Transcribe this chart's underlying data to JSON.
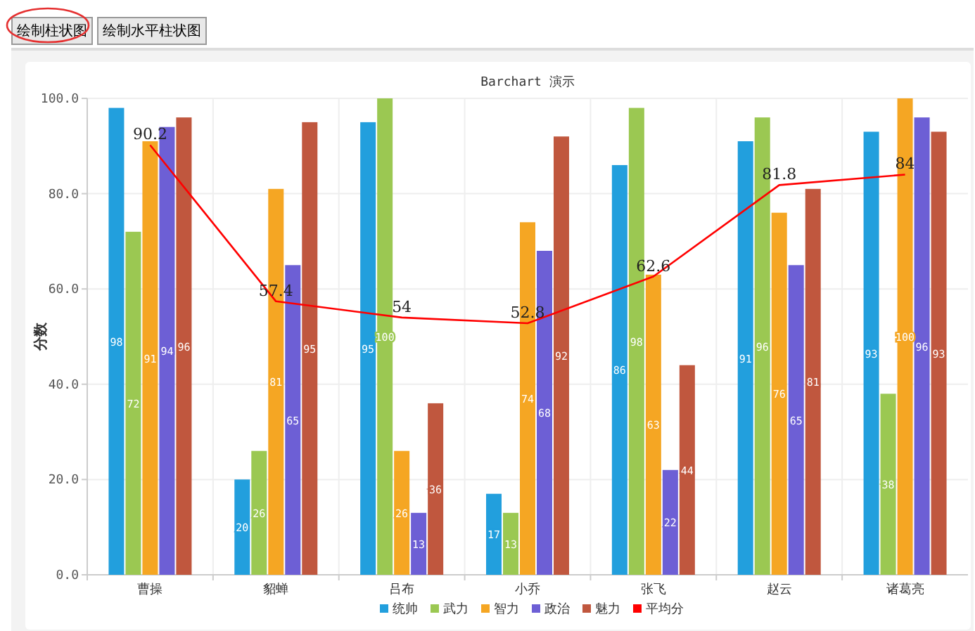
{
  "chart_data": {
    "type": "bar",
    "title": "Barchart 演示",
    "ylabel": "分数",
    "annotations": [
      "绘制柱状图",
      "绘制水平柱状图"
    ],
    "categories": [
      "曹操",
      "貂蝉",
      "吕布",
      "小乔",
      "张飞",
      "赵云",
      "诸葛亮"
    ],
    "series": [
      {
        "name": "统帅",
        "color": "#229fdd",
        "values": [
          98,
          20,
          95,
          17,
          86,
          91,
          93
        ]
      },
      {
        "name": "武力",
        "color": "#9bc852",
        "values": [
          72,
          26,
          100,
          13,
          98,
          96,
          38
        ]
      },
      {
        "name": "智力",
        "color": "#f5a623",
        "values": [
          91,
          81,
          26,
          74,
          63,
          76,
          100
        ]
      },
      {
        "name": "政治",
        "color": "#6d5fd5",
        "values": [
          94,
          65,
          13,
          68,
          22,
          65,
          96
        ]
      },
      {
        "name": "魅力",
        "color": "#c0573e",
        "values": [
          96,
          95,
          36,
          92,
          44,
          81,
          93
        ]
      },
      {
        "name": "平均分",
        "type": "line",
        "color": "#ff0000",
        "values": [
          90.2,
          57.4,
          54,
          52.8,
          62.6,
          81.8,
          84
        ]
      }
    ],
    "ylim": [
      0,
      100
    ],
    "yticks": [
      {
        "value": 0,
        "label": "0.0"
      },
      {
        "value": 20,
        "label": "20.0"
      },
      {
        "value": 40,
        "label": "40.0"
      },
      {
        "value": 60,
        "label": "60.0"
      },
      {
        "value": 80,
        "label": "80.0"
      },
      {
        "value": 100,
        "label": "100.0"
      }
    ],
    "grid": true,
    "legend": "bottom",
    "data_labels": true
  }
}
